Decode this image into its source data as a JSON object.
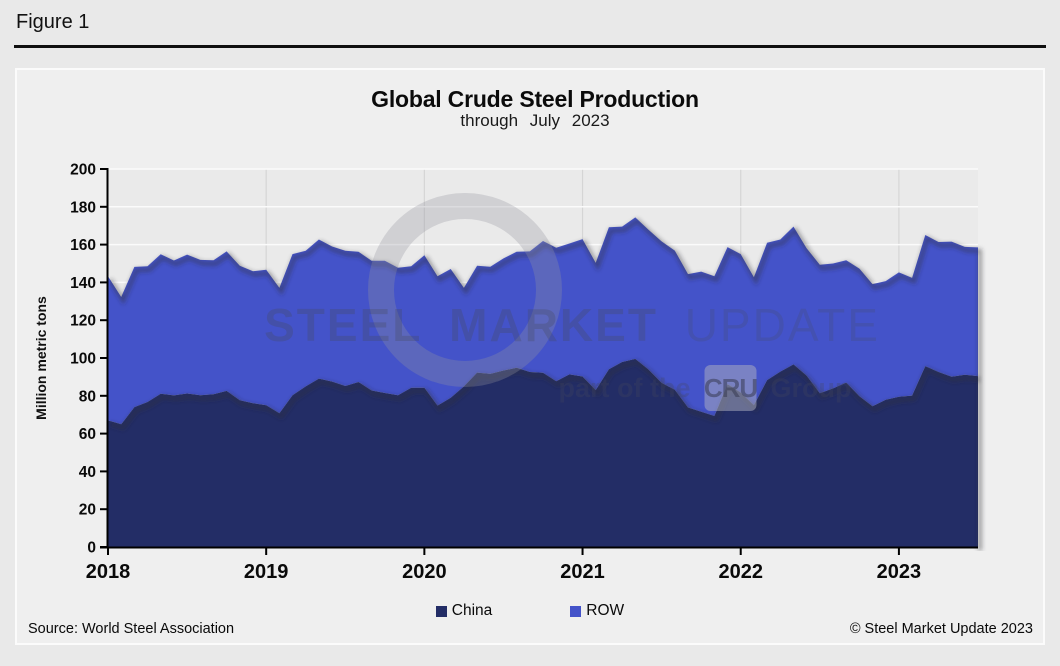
{
  "figure_label": "Figure 1",
  "chart": {
    "title": "Global Crude Steel Production",
    "subtitle": "through July 2023",
    "y_axis_label": "Million metric tons",
    "legend": [
      {
        "label": "China",
        "color": "#232d66"
      },
      {
        "label": "ROW",
        "color": "#4453c9"
      }
    ]
  },
  "watermark": {
    "word1": "STEEL",
    "word2": "MARKET",
    "word3": "UPDATE",
    "part_of_the": "part of the",
    "cru": "CRU",
    "group": "Group"
  },
  "footer": {
    "source": "Source: World Steel Association",
    "copyright": "© Steel Market Update 2023"
  },
  "chart_data": {
    "type": "area",
    "stacked": true,
    "title": "Global Crude Steel Production",
    "subtitle": "through July 2023",
    "ylabel": "Million metric tons",
    "ylim": [
      0,
      200
    ],
    "y_tick_step": 20,
    "grid": true,
    "legend_position": "bottom",
    "x_tick_labels": [
      "2018",
      "2019",
      "2020",
      "2021",
      "2022",
      "2023"
    ],
    "x_tick_month_index": [
      0,
      12,
      24,
      36,
      48,
      60
    ],
    "months": [
      "2018-01",
      "2018-02",
      "2018-03",
      "2018-04",
      "2018-05",
      "2018-06",
      "2018-07",
      "2018-08",
      "2018-09",
      "2018-10",
      "2018-11",
      "2018-12",
      "2019-01",
      "2019-02",
      "2019-03",
      "2019-04",
      "2019-05",
      "2019-06",
      "2019-07",
      "2019-08",
      "2019-09",
      "2019-10",
      "2019-11",
      "2019-12",
      "2020-01",
      "2020-02",
      "2020-03",
      "2020-04",
      "2020-05",
      "2020-06",
      "2020-07",
      "2020-08",
      "2020-09",
      "2020-10",
      "2020-11",
      "2020-12",
      "2021-01",
      "2021-02",
      "2021-03",
      "2021-04",
      "2021-05",
      "2021-06",
      "2021-07",
      "2021-08",
      "2021-09",
      "2021-10",
      "2021-11",
      "2021-12",
      "2022-01",
      "2022-02",
      "2022-03",
      "2022-04",
      "2022-05",
      "2022-06",
      "2022-07",
      "2022-08",
      "2022-09",
      "2022-10",
      "2022-11",
      "2022-12",
      "2023-01",
      "2023-02",
      "2023-03",
      "2023-04",
      "2023-05",
      "2023-06",
      "2023-07"
    ],
    "series": [
      {
        "name": "China",
        "color": "#232d66",
        "values": [
          67.0,
          64.9,
          74.0,
          76.7,
          81.1,
          80.2,
          81.2,
          80.3,
          80.8,
          82.6,
          77.6,
          76.1,
          75.0,
          70.8,
          80.3,
          85.0,
          89.1,
          87.5,
          85.2,
          87.3,
          82.8,
          81.5,
          80.3,
          84.3,
          84.3,
          74.8,
          79.0,
          85.0,
          92.3,
          91.6,
          93.4,
          94.8,
          92.6,
          92.2,
          87.7,
          91.3,
          90.2,
          83.0,
          94.0,
          97.9,
          99.5,
          93.9,
          86.8,
          83.2,
          73.8,
          71.6,
          69.3,
          86.2,
          81.7,
          75.0,
          88.3,
          92.8,
          96.6,
          90.7,
          81.4,
          83.9,
          87.0,
          79.8,
          74.5,
          77.9,
          79.5,
          80.1,
          95.7,
          92.6,
          90.1,
          91.1,
          90.4
        ]
      },
      {
        "name": "ROW",
        "color": "#4453c9",
        "values": [
          76.3,
          67.4,
          74.2,
          71.8,
          73.8,
          71.4,
          73.5,
          71.6,
          70.9,
          73.8,
          71.2,
          69.8,
          71.7,
          66.3,
          74.7,
          71.7,
          73.6,
          71.5,
          71.5,
          68.9,
          68.7,
          70.0,
          67.5,
          64.2,
          70.1,
          68.5,
          68.1,
          52.1,
          56.5,
          56.7,
          59.3,
          61.4,
          63.8,
          69.7,
          70.6,
          69.3,
          72.7,
          67.3,
          75.2,
          71.6,
          74.9,
          74.0,
          74.9,
          73.6,
          70.6,
          74.1,
          74.0,
          72.5,
          73.3,
          67.7,
          72.7,
          69.9,
          72.9,
          67.4,
          67.9,
          66.1,
          64.7,
          67.5,
          64.6,
          62.8,
          65.8,
          62.3,
          69.4,
          68.8,
          71.5,
          67.7,
          68.1
        ]
      }
    ]
  }
}
